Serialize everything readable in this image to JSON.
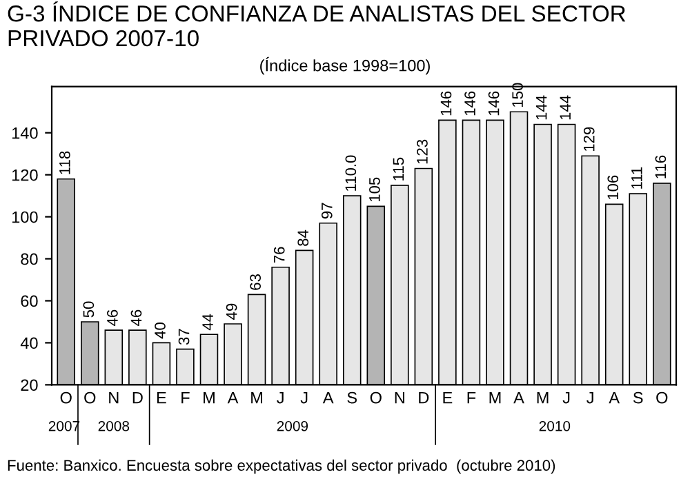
{
  "chart_data": {
    "type": "bar",
    "title": "G-3 ÍNDICE DE CONFIANZA DE ANALISTAS DEL SECTOR PRIVADO 2007-10",
    "subtitle": "(Índice base 1998=100)",
    "categories": [
      "O",
      "O",
      "N",
      "D",
      "E",
      "F",
      "M",
      "A",
      "M",
      "J",
      "J",
      "A",
      "S",
      "O",
      "N",
      "D",
      "E",
      "F",
      "M",
      "A",
      "M",
      "J",
      "J",
      "A",
      "S",
      "O"
    ],
    "values": [
      118,
      50,
      46,
      46,
      40,
      37,
      44,
      49,
      63,
      76,
      84,
      97,
      110,
      105,
      115,
      123,
      146,
      146,
      146,
      150,
      144,
      144,
      129,
      106,
      111,
      116
    ],
    "value_labels": [
      "118",
      "50",
      "46",
      "46",
      "40",
      "37",
      "44",
      "49",
      "63",
      "76",
      "84",
      "97",
      "110.0",
      "105",
      "115",
      "123",
      "146",
      "146",
      "146",
      "150",
      "144",
      "144",
      "129",
      "106",
      "111",
      "116"
    ],
    "colors": [
      "#b4b4b4",
      "#b4b4b4",
      "#e6e6e6",
      "#e6e6e6",
      "#e6e6e6",
      "#e6e6e6",
      "#e6e6e6",
      "#e6e6e6",
      "#e6e6e6",
      "#e6e6e6",
      "#e6e6e6",
      "#e6e6e6",
      "#e6e6e6",
      "#b4b4b4",
      "#e6e6e6",
      "#e6e6e6",
      "#e6e6e6",
      "#e6e6e6",
      "#e6e6e6",
      "#e6e6e6",
      "#e6e6e6",
      "#e6e6e6",
      "#e6e6e6",
      "#e6e6e6",
      "#e6e6e6",
      "#b4b4b4"
    ],
    "ylim": [
      20,
      162
    ],
    "yticks": [
      20,
      40,
      60,
      80,
      100,
      120,
      140
    ],
    "grid": false,
    "annotations": [
      "2007",
      "2008",
      "2009",
      "2010",
      "Fuente: Banxico. Encuesta sobre expectativas del sector privado  (octubre 2010)"
    ]
  }
}
